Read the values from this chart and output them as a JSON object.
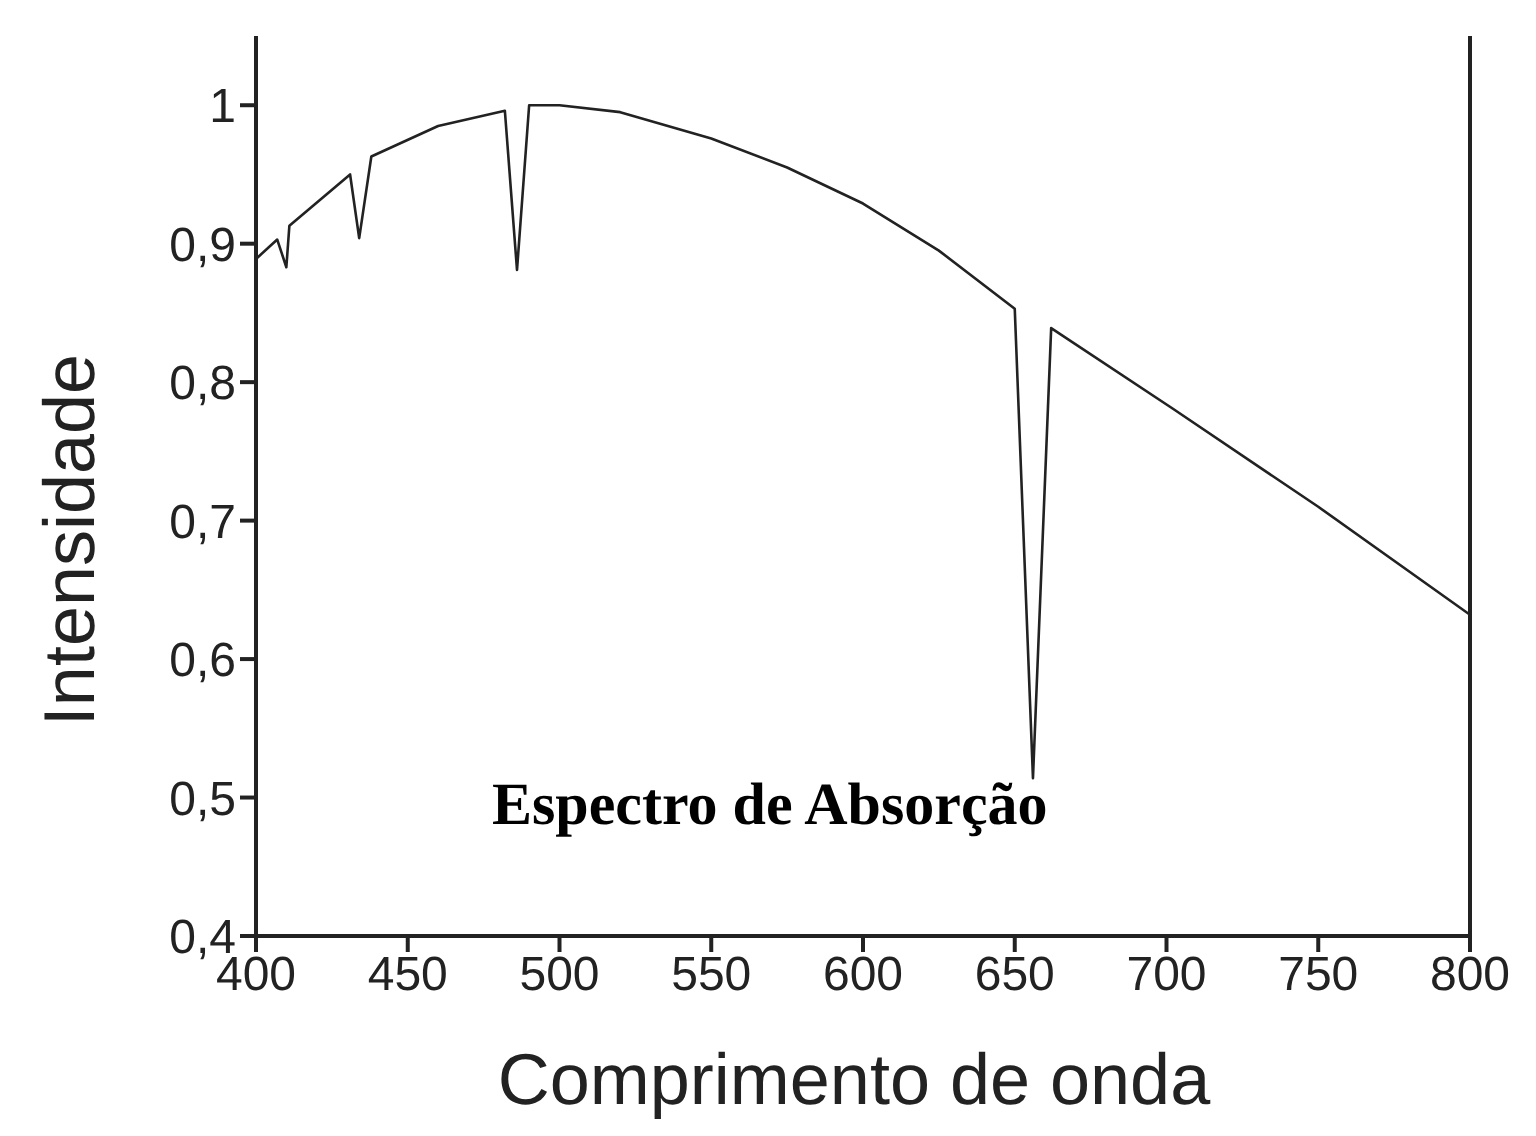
{
  "chart_data": {
    "type": "line",
    "xlabel": "Comprimento de onda",
    "ylabel": "Intensidade",
    "annotations": [
      "Espectro de Absorção"
    ],
    "x": [
      400,
      407,
      410,
      411,
      431,
      434,
      438,
      460,
      482,
      486,
      490,
      500,
      520,
      550,
      575,
      600,
      625,
      650,
      656,
      662,
      702,
      750,
      800
    ],
    "series": [
      {
        "color": "#222222",
        "values": [
          0.889,
          0.903,
          0.883,
          0.913,
          0.95,
          0.904,
          0.963,
          0.985,
          0.996,
          0.881,
          1.0,
          1.0,
          0.995,
          0.976,
          0.955,
          0.929,
          0.895,
          0.853,
          0.514,
          0.839,
          0.781,
          0.71,
          0.632
        ]
      }
    ],
    "xlim": [
      400,
      800
    ],
    "xticks": [
      400,
      450,
      500,
      550,
      600,
      650,
      700,
      750,
      800
    ],
    "ylim": [
      0.4,
      1.05
    ],
    "yticks": [
      {
        "value": 0.4,
        "label": "0,4"
      },
      {
        "value": 0.5,
        "label": "0,5"
      },
      {
        "value": 0.6,
        "label": "0,6"
      },
      {
        "value": 0.7,
        "label": "0,7"
      },
      {
        "value": 0.8,
        "label": "0,8"
      },
      {
        "value": 0.9,
        "label": "0,9"
      },
      {
        "value": 1,
        "label": "1"
      }
    ],
    "grid": false,
    "legend": false,
    "marker": "none",
    "line_style": "solid"
  }
}
